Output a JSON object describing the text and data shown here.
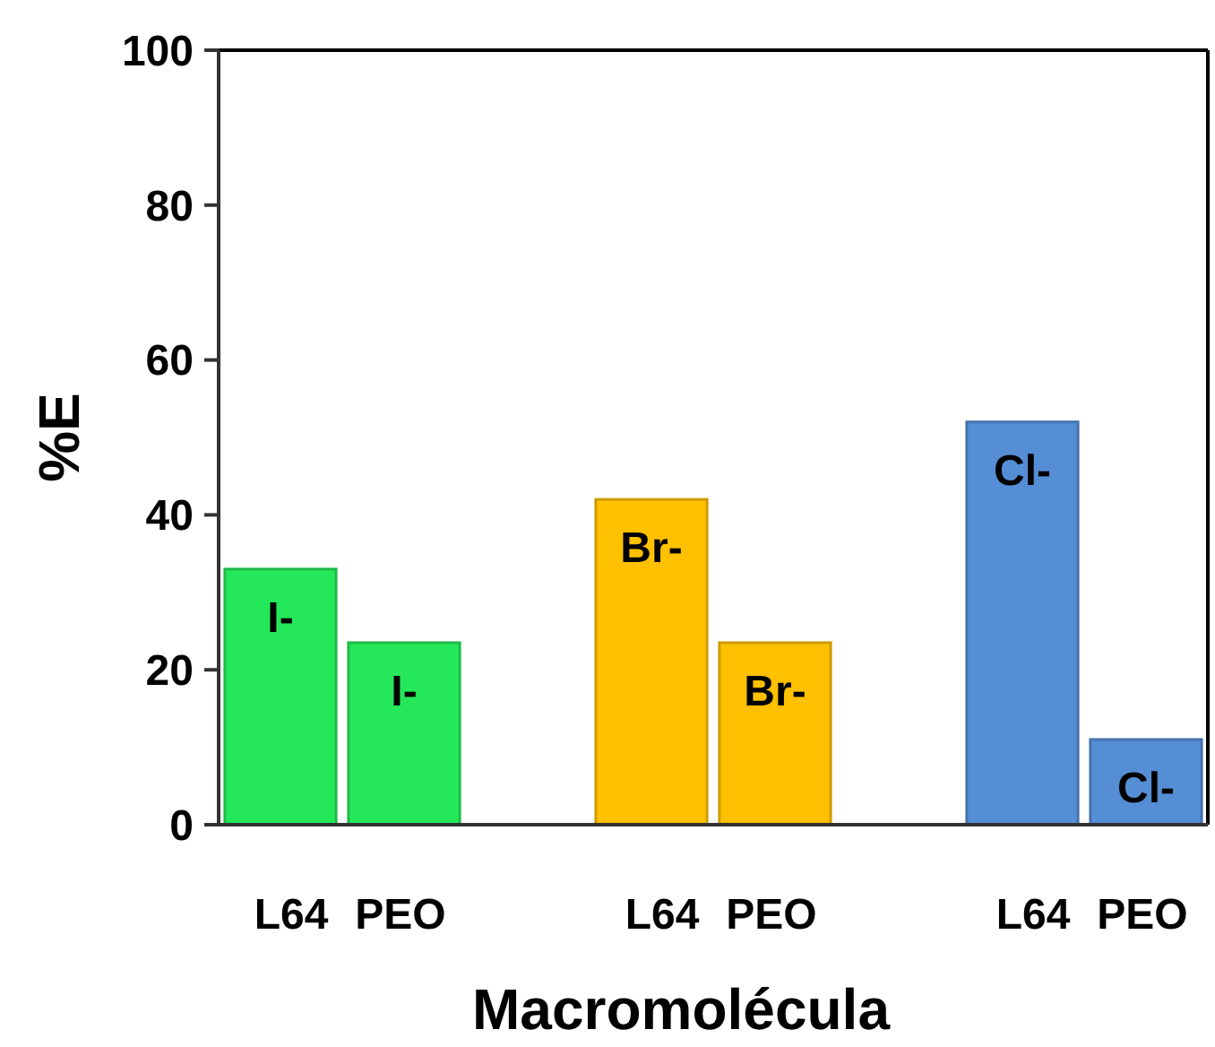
{
  "chart_data": {
    "type": "bar",
    "xlabel": "Macromolécula",
    "ylabel": "%E",
    "categories": [
      "L64",
      "PEO",
      null,
      "L64",
      "PEO",
      null,
      "L64",
      "PEO"
    ],
    "series": [
      {
        "name": "I-",
        "color": "#24e85a",
        "values": [
          33,
          23.5,
          null,
          null,
          null,
          null,
          null,
          null
        ]
      },
      {
        "name": "Br-",
        "color": "#ffc000",
        "values": [
          null,
          null,
          null,
          42,
          23.5,
          null,
          null,
          null
        ]
      },
      {
        "name": "Cl-",
        "color": "#558ed5",
        "values": [
          null,
          null,
          null,
          null,
          null,
          null,
          52,
          11
        ]
      }
    ],
    "ylim": [
      0,
      100
    ],
    "yticks": [
      0,
      20,
      40,
      60,
      80,
      100
    ],
    "grid": false
  }
}
